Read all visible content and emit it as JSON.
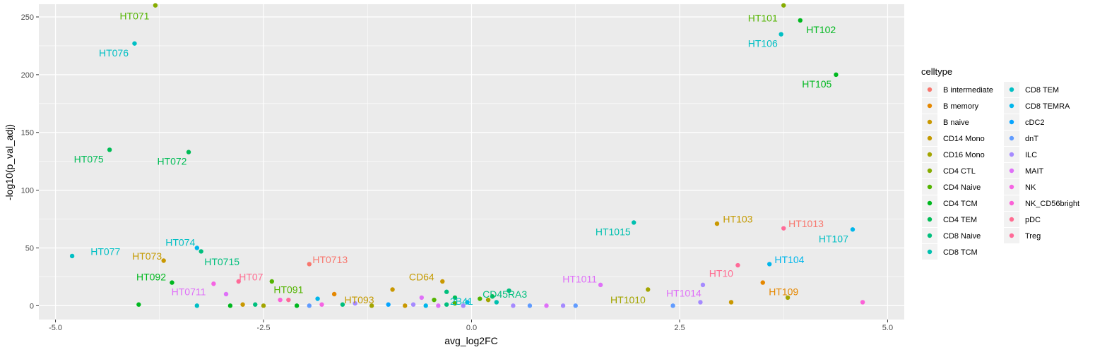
{
  "chart_data": {
    "type": "scatter",
    "xlabel": "avg_log2FC",
    "ylabel": "-log10(p_val_adj)",
    "xlim": [
      -5.2,
      5.2
    ],
    "ylim": [
      -12,
      261
    ],
    "x_ticks": [
      -5.0,
      -2.5,
      0.0,
      2.5,
      5.0
    ],
    "x_tick_labels": [
      "-5.0",
      "-2.5",
      "0.0",
      "2.5",
      "5.0"
    ],
    "y_ticks": [
      0,
      50,
      100,
      150,
      200,
      250
    ],
    "y_tick_labels": [
      "0",
      "50",
      "100",
      "150",
      "200",
      "250"
    ],
    "grid": true,
    "background": "#ebebeb",
    "legend": {
      "title": "celltype",
      "placement": "right",
      "entries": [
        {
          "name": "B intermediate",
          "color": "#F8766D"
        },
        {
          "name": "B memory",
          "color": "#E58700"
        },
        {
          "name": "B naive",
          "color": "#C99800"
        },
        {
          "name": "CD14 Mono",
          "color": "#C49A00"
        },
        {
          "name": "CD16 Mono",
          "color": "#A3A500"
        },
        {
          "name": "CD4 CTL",
          "color": "#86AC00"
        },
        {
          "name": "CD4 Naive",
          "color": "#53B400"
        },
        {
          "name": "CD4 TCM",
          "color": "#00B81F"
        },
        {
          "name": "CD4 TEM",
          "color": "#00BC56"
        },
        {
          "name": "CD8 Naive",
          "color": "#00BF7D"
        },
        {
          "name": "CD8 TCM",
          "color": "#00C0AF"
        },
        {
          "name": "CD8 TEM",
          "color": "#00BFC4"
        },
        {
          "name": "CD8 TEMRA",
          "color": "#00B6EB"
        },
        {
          "name": "cDC2",
          "color": "#06A4FF"
        },
        {
          "name": "dnT",
          "color": "#619CFF"
        },
        {
          "name": "ILC",
          "color": "#A58AFF"
        },
        {
          "name": "MAIT",
          "color": "#DF70F8"
        },
        {
          "name": "NK",
          "color": "#F564E3"
        },
        {
          "name": "NK_CD56bright",
          "color": "#FB61D7"
        },
        {
          "name": "pDC",
          "color": "#FF6C91"
        },
        {
          "name": "Treg",
          "color": "#FF6A98"
        }
      ]
    },
    "points": [
      {
        "x": -3.8,
        "y": 260,
        "type": "CD4 CTL"
      },
      {
        "x": -4.05,
        "y": 227,
        "type": "CD8 TEM"
      },
      {
        "x": -4.35,
        "y": 135,
        "type": "CD4 TEM"
      },
      {
        "x": -3.4,
        "y": 133,
        "type": "CD4 TEM"
      },
      {
        "x": -4.8,
        "y": 43,
        "type": "CD8 TEM"
      },
      {
        "x": -3.7,
        "y": 39,
        "type": "B naive"
      },
      {
        "x": -3.3,
        "y": 50,
        "type": "CD8 TEMRA"
      },
      {
        "x": -3.25,
        "y": 47,
        "type": "CD8 Naive"
      },
      {
        "x": -3.6,
        "y": 20,
        "type": "CD4 TCM"
      },
      {
        "x": -2.8,
        "y": 21,
        "type": "Treg"
      },
      {
        "x": -3.1,
        "y": 19,
        "type": "NK"
      },
      {
        "x": -2.95,
        "y": 10,
        "type": "MAIT"
      },
      {
        "x": -2.4,
        "y": 21,
        "type": "CD4 Naive"
      },
      {
        "x": -1.95,
        "y": 36,
        "type": "B intermediate"
      },
      {
        "x": -1.65,
        "y": 10,
        "type": "B memory"
      },
      {
        "x": -2.3,
        "y": 5,
        "type": "NK_CD56bright"
      },
      {
        "x": -2.2,
        "y": 5,
        "type": "Treg"
      },
      {
        "x": -0.95,
        "y": 14,
        "type": "B naive"
      },
      {
        "x": -0.35,
        "y": 21,
        "type": "B naive"
      },
      {
        "x": -0.3,
        "y": 12,
        "type": "CD8 Naive"
      },
      {
        "x": -0.2,
        "y": 7,
        "type": "CD4 TEM"
      },
      {
        "x": -0.45,
        "y": 5,
        "type": "CD4 Naive"
      },
      {
        "x": -0.6,
        "y": 7,
        "type": "MAIT"
      },
      {
        "x": -1.85,
        "y": 6,
        "type": "CD8 TEMRA"
      },
      {
        "x": -4.0,
        "y": 1,
        "type": "CD4 TCM"
      },
      {
        "x": -3.3,
        "y": 0,
        "type": "CD8 TEM"
      },
      {
        "x": -2.9,
        "y": 0,
        "type": "CD4 TCM"
      },
      {
        "x": -2.6,
        "y": 1,
        "type": "CD8 Naive"
      },
      {
        "x": -2.75,
        "y": 1,
        "type": "B naive"
      },
      {
        "x": -2.5,
        "y": 0,
        "type": "CD16 Mono"
      },
      {
        "x": -2.1,
        "y": 0,
        "type": "CD4 TCM"
      },
      {
        "x": -1.95,
        "y": 0,
        "type": "dnT"
      },
      {
        "x": -1.8,
        "y": 1,
        "type": "NK"
      },
      {
        "x": -1.55,
        "y": 1,
        "type": "CD8 Naive"
      },
      {
        "x": -1.4,
        "y": 2,
        "type": "ILC"
      },
      {
        "x": -1.2,
        "y": 0,
        "type": "CD16 Mono"
      },
      {
        "x": -1.0,
        "y": 1,
        "type": "cDC2"
      },
      {
        "x": -0.8,
        "y": 0,
        "type": "B naive"
      },
      {
        "x": -0.7,
        "y": 1,
        "type": "ILC"
      },
      {
        "x": -0.55,
        "y": 0,
        "type": "CD8 TEMRA"
      },
      {
        "x": -0.4,
        "y": 0,
        "type": "MAIT"
      },
      {
        "x": -0.3,
        "y": 1,
        "type": "CD8 Naive"
      },
      {
        "x": -0.2,
        "y": 2,
        "type": "CD4 Naive"
      },
      {
        "x": -0.1,
        "y": 0,
        "type": "ILC"
      },
      {
        "x": -0.05,
        "y": 3,
        "type": "CD8 TEMRA"
      },
      {
        "x": 0.1,
        "y": 6,
        "type": "CD4 Naive"
      },
      {
        "x": 0.2,
        "y": 5,
        "type": "CD16 Mono"
      },
      {
        "x": 0.25,
        "y": 8,
        "type": "CD4 TEM"
      },
      {
        "x": 0.45,
        "y": 13,
        "type": "CD8 Naive"
      },
      {
        "x": 0.3,
        "y": 3,
        "type": "CD8 TCM"
      },
      {
        "x": 0.5,
        "y": 0,
        "type": "ILC"
      },
      {
        "x": 0.7,
        "y": 0,
        "type": "dnT"
      },
      {
        "x": 0.9,
        "y": 0,
        "type": "MAIT"
      },
      {
        "x": 1.1,
        "y": 0,
        "type": "ILC"
      },
      {
        "x": 1.25,
        "y": 0,
        "type": "dnT"
      },
      {
        "x": 3.75,
        "y": 260,
        "type": "CD4 CTL"
      },
      {
        "x": 3.95,
        "y": 247,
        "type": "CD4 TCM"
      },
      {
        "x": 3.72,
        "y": 235,
        "type": "CD8 TEM"
      },
      {
        "x": 4.38,
        "y": 200,
        "type": "CD4 TCM"
      },
      {
        "x": 1.95,
        "y": 72,
        "type": "CD8 TCM"
      },
      {
        "x": 2.95,
        "y": 71,
        "type": "B naive"
      },
      {
        "x": 3.75,
        "y": 67,
        "type": "Treg"
      },
      {
        "x": 4.58,
        "y": 66,
        "type": "CD8 TEMRA"
      },
      {
        "x": 3.58,
        "y": 36,
        "type": "CD8 TEMRA"
      },
      {
        "x": 3.2,
        "y": 35,
        "type": "Treg"
      },
      {
        "x": 3.5,
        "y": 20,
        "type": "B memory"
      },
      {
        "x": 1.55,
        "y": 18,
        "type": "MAIT"
      },
      {
        "x": 2.78,
        "y": 18,
        "type": "ILC"
      },
      {
        "x": 2.12,
        "y": 14,
        "type": "CD16 Mono"
      },
      {
        "x": 3.8,
        "y": 7,
        "type": "CD16 Mono"
      },
      {
        "x": 3.12,
        "y": 3,
        "type": "B naive"
      },
      {
        "x": 2.42,
        "y": 0,
        "type": "dnT"
      },
      {
        "x": 2.75,
        "y": 3,
        "type": "ILC"
      },
      {
        "x": 4.7,
        "y": 3,
        "type": "NK_CD56bright"
      }
    ],
    "labels": [
      {
        "text": "HT071",
        "x": -4.05,
        "y": 251,
        "color": "#53B400"
      },
      {
        "text": "HT076",
        "x": -4.3,
        "y": 219,
        "color": "#00BFC4"
      },
      {
        "text": "HT075",
        "x": -4.6,
        "y": 127,
        "color": "#00BC56"
      },
      {
        "text": "HT072",
        "x": -3.6,
        "y": 125,
        "color": "#00BC56"
      },
      {
        "text": "HT077",
        "x": -4.4,
        "y": 47,
        "color": "#00BFC4"
      },
      {
        "text": "HT073",
        "x": -3.9,
        "y": 43,
        "color": "#C49A00"
      },
      {
        "text": "HT074",
        "x": -3.5,
        "y": 55,
        "color": "#00BFC4"
      },
      {
        "text": "HT0715",
        "x": -3.0,
        "y": 38,
        "color": "#00BF7D"
      },
      {
        "text": "HT092",
        "x": -3.85,
        "y": 25,
        "color": "#00B81F"
      },
      {
        "text": "HT0711",
        "x": -3.4,
        "y": 12,
        "color": "#DF70F8"
      },
      {
        "text": "HT07",
        "x": -2.65,
        "y": 25,
        "color": "#FF6C91"
      },
      {
        "text": "HT091",
        "x": -2.2,
        "y": 14,
        "color": "#53B400"
      },
      {
        "text": "HT0713",
        "x": -1.7,
        "y": 40,
        "color": "#F8766D"
      },
      {
        "text": "HT093",
        "x": -1.35,
        "y": 5,
        "color": "#C49A00"
      },
      {
        "text": "CD64",
        "x": -0.6,
        "y": 25,
        "color": "#C49A00"
      },
      {
        "text": "2B41",
        "x": -0.12,
        "y": 4,
        "color": "#00BFC4"
      },
      {
        "text": "CD45RA3",
        "x": 0.4,
        "y": 10,
        "color": "#00BF7D"
      },
      {
        "text": "HT1011",
        "x": 1.3,
        "y": 23,
        "color": "#DF70F8"
      },
      {
        "text": "HT1010",
        "x": 1.88,
        "y": 5,
        "color": "#A3A500"
      },
      {
        "text": "HT1014",
        "x": 2.55,
        "y": 11,
        "color": "#DF70F8"
      },
      {
        "text": "HT1015",
        "x": 1.7,
        "y": 64,
        "color": "#00C0AF"
      },
      {
        "text": "HT103",
        "x": 3.2,
        "y": 75,
        "color": "#C49A00"
      },
      {
        "text": "HT1013",
        "x": 4.02,
        "y": 71,
        "color": "#F8766D"
      },
      {
        "text": "HT107",
        "x": 4.35,
        "y": 58,
        "color": "#00BFC4"
      },
      {
        "text": "HT104",
        "x": 3.82,
        "y": 40,
        "color": "#00B6EB"
      },
      {
        "text": "HT10",
        "x": 3.0,
        "y": 28,
        "color": "#FF6C91"
      },
      {
        "text": "HT109",
        "x": 3.75,
        "y": 12,
        "color": "#E58700"
      },
      {
        "text": "HT101",
        "x": 3.5,
        "y": 249,
        "color": "#53B400"
      },
      {
        "text": "HT102",
        "x": 4.2,
        "y": 239,
        "color": "#00B81F"
      },
      {
        "text": "HT106",
        "x": 3.5,
        "y": 227,
        "color": "#00BFC4"
      },
      {
        "text": "HT105",
        "x": 4.15,
        "y": 192,
        "color": "#00B81F"
      }
    ]
  }
}
